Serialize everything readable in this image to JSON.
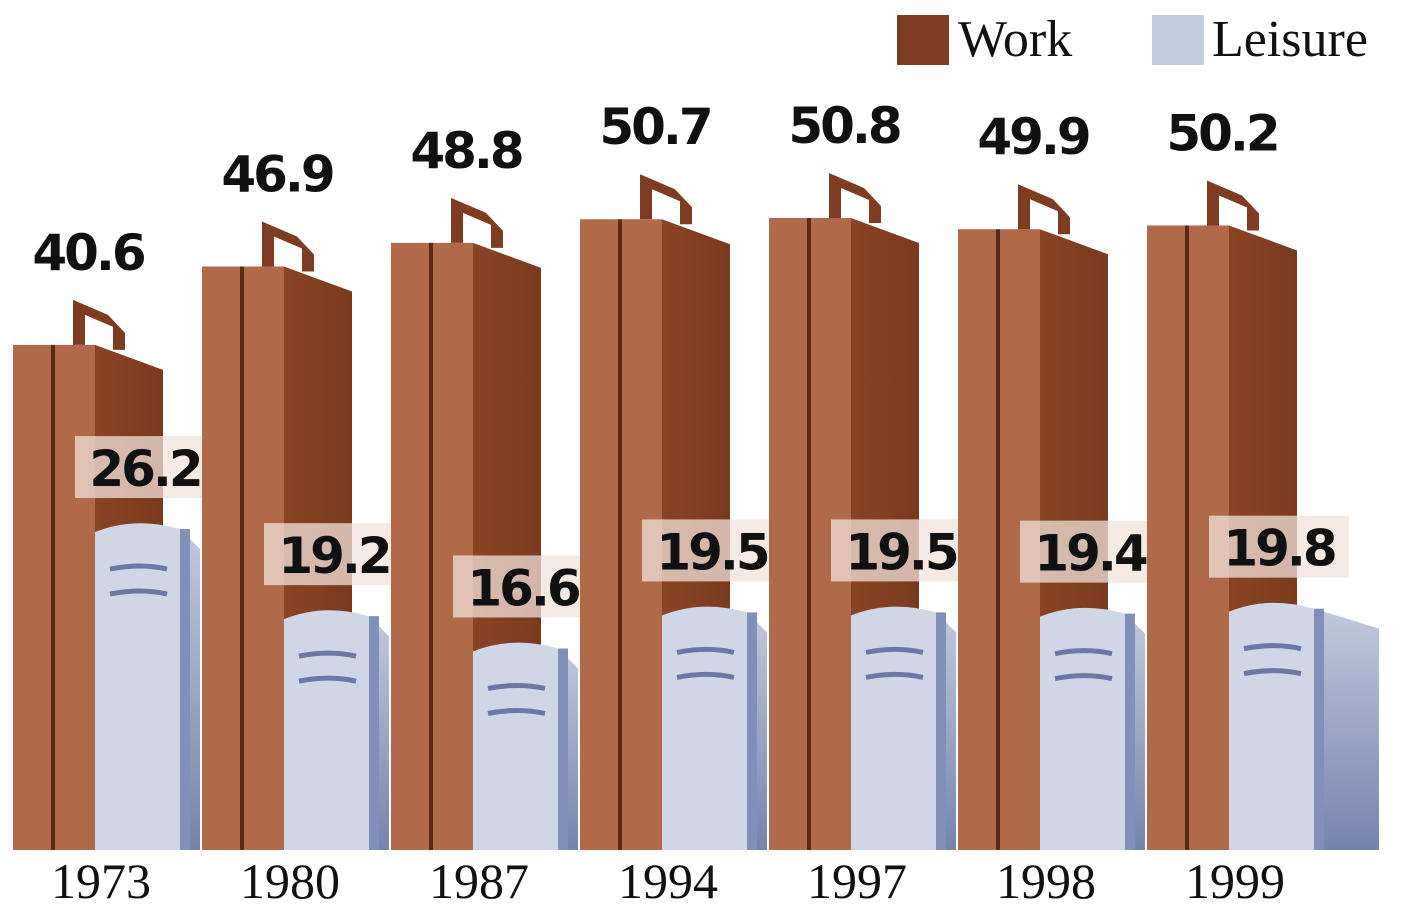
{
  "chart_data": {
    "type": "bar",
    "categories": [
      "1973",
      "1980",
      "1987",
      "1994",
      "1997",
      "1998",
      "1999"
    ],
    "series": [
      {
        "name": "Work",
        "color": "#b06a4a",
        "values": [
          40.6,
          46.9,
          48.8,
          50.7,
          50.8,
          49.9,
          50.2
        ]
      },
      {
        "name": "Leisure",
        "color": "#cfd7e6",
        "values": [
          26.2,
          19.2,
          16.6,
          19.5,
          19.5,
          19.4,
          19.8
        ]
      }
    ]
  }
}
